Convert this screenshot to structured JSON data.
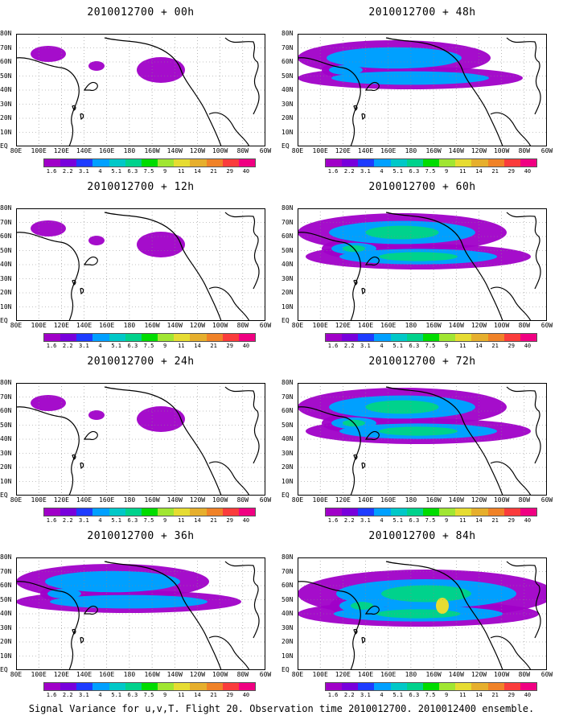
{
  "panels": [
    {
      "title": "2010012700 + 00h",
      "level": 0
    },
    {
      "title": "2010012700 + 48h",
      "level": 2
    },
    {
      "title": "2010012700 + 12h",
      "level": 1
    },
    {
      "title": "2010012700 + 60h",
      "level": 3
    },
    {
      "title": "2010012700 + 24h",
      "level": 1
    },
    {
      "title": "2010012700 + 72h",
      "level": 3
    },
    {
      "title": "2010012700 + 36h",
      "level": 2
    },
    {
      "title": "2010012700 + 84h",
      "level": 4
    }
  ],
  "lat_labels": [
    "80N",
    "70N",
    "60N",
    "50N",
    "40N",
    "30N",
    "20N",
    "10N",
    "EQ"
  ],
  "lon_labels": [
    "80E",
    "100E",
    "120E",
    "140E",
    "160E",
    "180",
    "160W",
    "140W",
    "120W",
    "100W",
    "80W",
    "60W"
  ],
  "colorbar": {
    "labels": [
      "1.6",
      "2.2",
      "3.1",
      "4",
      "5.1",
      "6.3",
      "7.5",
      "9",
      "11",
      "14",
      "21",
      "29",
      "40"
    ],
    "colors": [
      "#a000c8",
      "#7800dc",
      "#1e3cff",
      "#00a0ff",
      "#00c8c8",
      "#00d28c",
      "#00dc00",
      "#a0e632",
      "#e6dc32",
      "#e6af2d",
      "#f08228",
      "#fa3c3c",
      "#f00082"
    ]
  },
  "caption": "Signal Variance for u,v,T. Flight 20. Observation time 2010012700. 2010012400 ensemble."
}
